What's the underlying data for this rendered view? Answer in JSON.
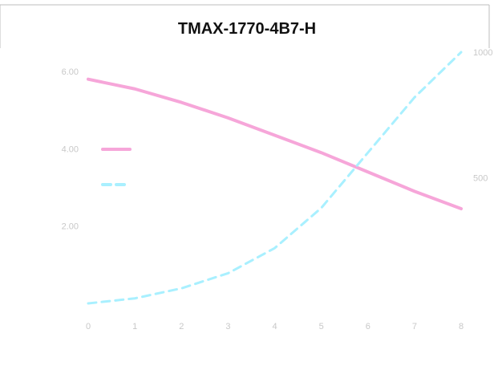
{
  "chart_data": {
    "type": "line",
    "title": "TMAX-1770-4B7-H",
    "xlabel": "",
    "ylabel_left": "",
    "ylabel_right": "",
    "x_ticks": [
      "0",
      "1",
      "2",
      "3",
      "4",
      "5",
      "6",
      "7",
      "8"
    ],
    "y_left_ticks": [
      "6.00",
      "4.00",
      "2.00"
    ],
    "y_right_ticks": [
      "1000",
      "500"
    ],
    "x": [
      0,
      1,
      2,
      3,
      4,
      5,
      6,
      7,
      8
    ],
    "y_left_range": [
      0,
      6.5
    ],
    "y_right_range": [
      0,
      1000
    ],
    "series": [
      {
        "name": "",
        "axis": "left",
        "color": "#f6a6d9",
        "style": "solid",
        "values": [
          5.8,
          5.55,
          5.2,
          4.8,
          4.35,
          3.9,
          3.4,
          2.9,
          2.45
        ]
      },
      {
        "name": "",
        "axis": "right",
        "color": "#a9f0ff",
        "style": "dashed",
        "values": [
          0,
          20,
          60,
          120,
          220,
          380,
          600,
          820,
          1000
        ]
      }
    ],
    "legend": "left",
    "grid": false
  },
  "colors": {
    "background": "#ffffff",
    "frame": "#bdbdbd",
    "line1": "#f6a6d9",
    "line2": "#a9f0ff"
  }
}
